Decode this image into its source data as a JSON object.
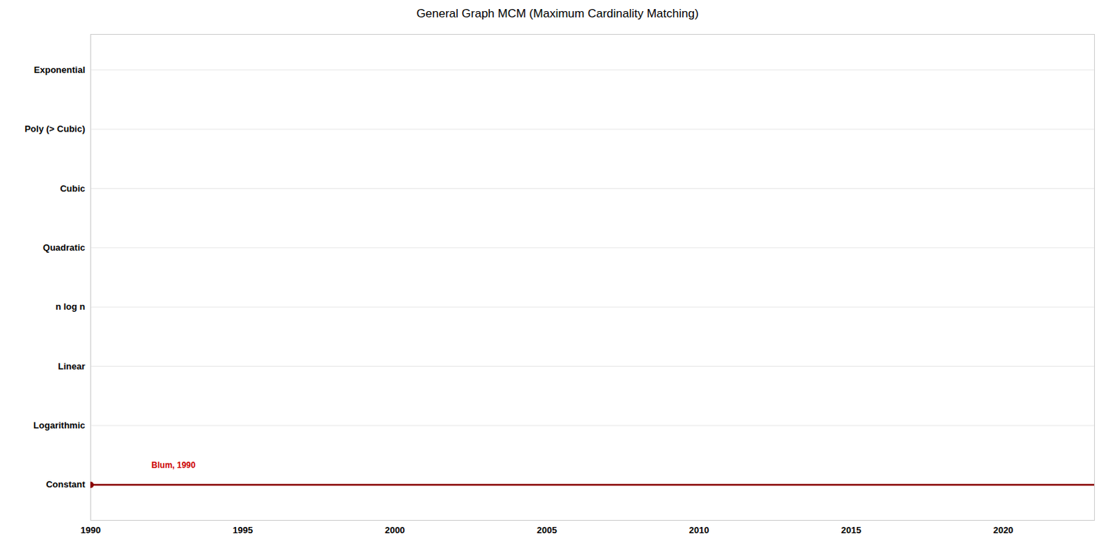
{
  "chart_data": {
    "type": "line",
    "title": "General Graph MCM (Maximum Cardinality Matching)",
    "series": [
      {
        "type": "line",
        "x": [
          1990,
          2023
        ],
        "values": [
          0,
          0
        ],
        "color": "#8B0000"
      },
      {
        "type": "scatter",
        "x": [
          1990
        ],
        "values": [
          0
        ],
        "color": "#8B0000"
      }
    ],
    "xlim": [
      1990,
      2023
    ],
    "xticks": [
      1990,
      1995,
      2000,
      2005,
      2010,
      2015,
      2020
    ],
    "ylim": [
      -0.6,
      7.6
    ],
    "yticks": [
      {
        "value": 0,
        "label": "Constant"
      },
      {
        "value": 1,
        "label": "Logarithmic"
      },
      {
        "value": 2,
        "label": "Linear"
      },
      {
        "value": 3,
        "label": "n log n"
      },
      {
        "value": 4,
        "label": "Quadratic"
      },
      {
        "value": 5,
        "label": "Cubic"
      },
      {
        "value": 6,
        "label": "Poly (> Cubic)"
      },
      {
        "value": 7,
        "label": "Exponential"
      }
    ],
    "annotations": [
      {
        "text": "Blum, 1990",
        "x": 1992,
        "y": 0.28,
        "color": "#CC0000"
      }
    ],
    "grid": true
  }
}
